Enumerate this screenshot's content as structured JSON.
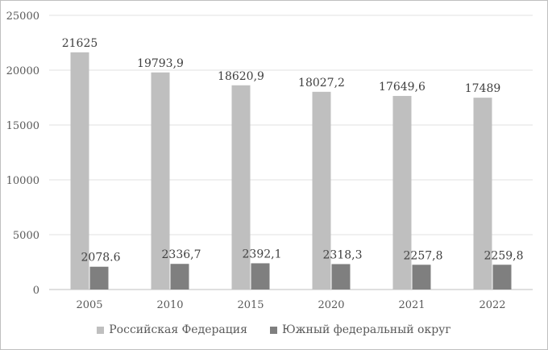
{
  "chart_data": {
    "type": "bar",
    "categories": [
      "2005",
      "2010",
      "2015",
      "2020",
      "2021",
      "2022"
    ],
    "series": [
      {
        "name": "Российская Федерация",
        "values": [
          21625,
          19793.9,
          18620.9,
          18027.2,
          17649.6,
          17489
        ],
        "labels": [
          "21625",
          "19793,9",
          "18620,9",
          "18027,2",
          "17649,6",
          "17489"
        ],
        "color": "#bfbfbf"
      },
      {
        "name": "Южный федеральный округ",
        "values": [
          2078.6,
          2336.7,
          2392.1,
          2318.3,
          2257.8,
          2259.8
        ],
        "labels": [
          "2078.6",
          "2336,7",
          "2392,1",
          "2318,3",
          "2257,8",
          "2259,8"
        ],
        "color": "#7f7f7f"
      }
    ],
    "ylim": [
      0,
      25000
    ],
    "yticks": [
      "0",
      "5000",
      "10000",
      "15000",
      "20000",
      "25000"
    ],
    "grid": true,
    "legend": "bottom"
  }
}
